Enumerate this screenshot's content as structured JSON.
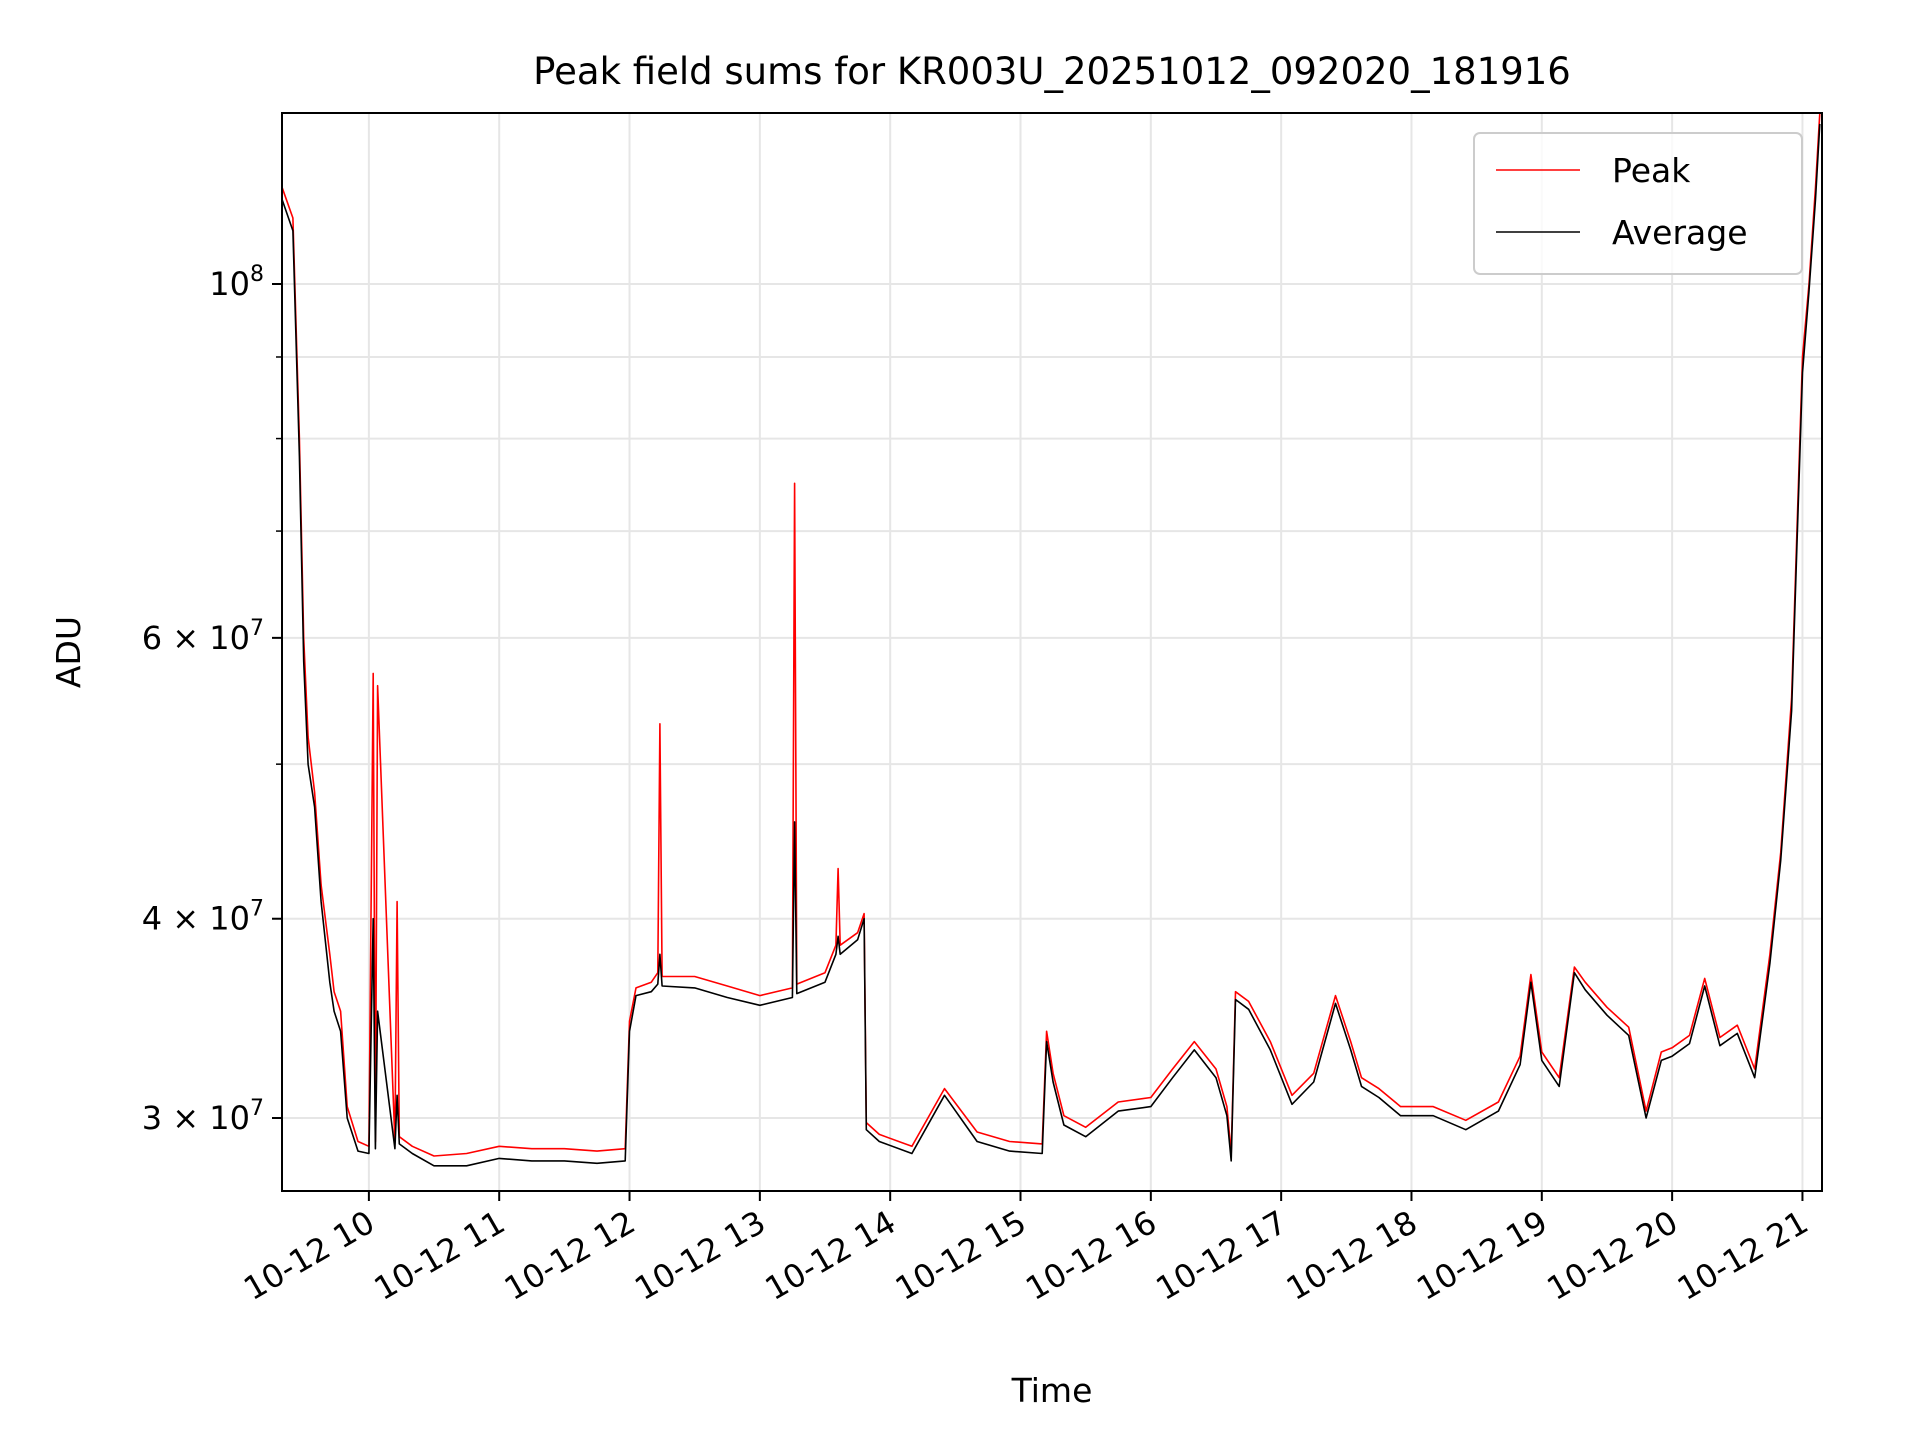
{
  "chart_data": {
    "type": "line",
    "title": "Peak field sums for KR003U_20251012_092020_181916",
    "xlabel": "Time",
    "ylabel": "ADU",
    "yscale": "log",
    "xlim": [
      "2025-10-12 09:20",
      "2025-10-12 21:09"
    ],
    "ylim": [
      27000000,
      128000000
    ],
    "grid": true,
    "legend_position": "top-right",
    "x_ticks": [
      {
        "value": "2025-10-12 10:00",
        "label": "10-12 10"
      },
      {
        "value": "2025-10-12 11:00",
        "label": "10-12 11"
      },
      {
        "value": "2025-10-12 12:00",
        "label": "10-12 12"
      },
      {
        "value": "2025-10-12 13:00",
        "label": "10-12 13"
      },
      {
        "value": "2025-10-12 14:00",
        "label": "10-12 14"
      },
      {
        "value": "2025-10-12 15:00",
        "label": "10-12 15"
      },
      {
        "value": "2025-10-12 16:00",
        "label": "10-12 16"
      },
      {
        "value": "2025-10-12 17:00",
        "label": "10-12 17"
      },
      {
        "value": "2025-10-12 18:00",
        "label": "10-12 18"
      },
      {
        "value": "2025-10-12 19:00",
        "label": "10-12 19"
      },
      {
        "value": "2025-10-12 20:00",
        "label": "10-12 20"
      },
      {
        "value": "2025-10-12 21:00",
        "label": "10-12 21"
      }
    ],
    "y_ticks": [
      {
        "value": 30000000,
        "base": "3 × 10",
        "exp": "7"
      },
      {
        "value": 40000000,
        "base": "4 × 10",
        "exp": "7"
      },
      {
        "value": 60000000,
        "base": "6 × 10",
        "exp": "7"
      },
      {
        "value": 100000000,
        "base": "10",
        "exp": "8"
      }
    ],
    "y_minor_ticks": [
      50000000,
      70000000,
      80000000,
      90000000
    ],
    "series": [
      {
        "name": "Peak",
        "color": "#ff0000",
        "x": [
          "2025-10-12 09:20",
          "2025-10-12 09:25",
          "2025-10-12 09:28",
          "2025-10-12 09:30",
          "2025-10-12 09:32",
          "2025-10-12 09:35",
          "2025-10-12 09:38",
          "2025-10-12 09:42",
          "2025-10-12 09:44",
          "2025-10-12 09:47",
          "2025-10-12 09:50",
          "2025-10-12 09:55",
          "2025-10-12 10:00",
          "2025-10-12 10:02",
          "2025-10-12 10:03",
          "2025-10-12 10:04",
          "2025-10-12 10:12",
          "2025-10-12 10:13",
          "2025-10-12 10:14",
          "2025-10-12 10:20",
          "2025-10-12 10:30",
          "2025-10-12 10:45",
          "2025-10-12 11:00",
          "2025-10-12 11:15",
          "2025-10-12 11:30",
          "2025-10-12 11:45",
          "2025-10-12 11:58",
          "2025-10-12 12:00",
          "2025-10-12 12:03",
          "2025-10-12 12:10",
          "2025-10-12 12:13",
          "2025-10-12 12:14",
          "2025-10-12 12:15",
          "2025-10-12 12:30",
          "2025-10-12 12:45",
          "2025-10-12 13:00",
          "2025-10-12 13:15",
          "2025-10-12 13:16",
          "2025-10-12 13:17",
          "2025-10-12 13:30",
          "2025-10-12 13:35",
          "2025-10-12 13:36",
          "2025-10-12 13:37",
          "2025-10-12 13:45",
          "2025-10-12 13:48",
          "2025-10-12 13:49",
          "2025-10-12 13:55",
          "2025-10-12 14:10",
          "2025-10-12 14:25",
          "2025-10-12 14:40",
          "2025-10-12 14:55",
          "2025-10-12 15:10",
          "2025-10-12 15:12",
          "2025-10-12 15:15",
          "2025-10-12 15:20",
          "2025-10-12 15:30",
          "2025-10-12 15:45",
          "2025-10-12 16:00",
          "2025-10-12 16:10",
          "2025-10-12 16:20",
          "2025-10-12 16:30",
          "2025-10-12 16:35",
          "2025-10-12 16:37",
          "2025-10-12 16:39",
          "2025-10-12 16:45",
          "2025-10-12 16:55",
          "2025-10-12 17:05",
          "2025-10-12 17:15",
          "2025-10-12 17:25",
          "2025-10-12 17:32",
          "2025-10-12 17:37",
          "2025-10-12 17:45",
          "2025-10-12 17:55",
          "2025-10-12 18:10",
          "2025-10-12 18:25",
          "2025-10-12 18:40",
          "2025-10-12 18:50",
          "2025-10-12 18:55",
          "2025-10-12 19:00",
          "2025-10-12 19:08",
          "2025-10-12 19:15",
          "2025-10-12 19:20",
          "2025-10-12 19:30",
          "2025-10-12 19:40",
          "2025-10-12 19:48",
          "2025-10-12 19:55",
          "2025-10-12 20:00",
          "2025-10-12 20:08",
          "2025-10-12 20:15",
          "2025-10-12 20:22",
          "2025-10-12 20:30",
          "2025-10-12 20:38",
          "2025-10-12 20:45",
          "2025-10-12 20:50",
          "2025-10-12 20:55",
          "2025-10-12 21:00",
          "2025-10-12 21:03",
          "2025-10-12 21:06",
          "2025-10-12 21:08"
        ],
        "y": [
          115000000,
          110000000,
          80000000,
          60000000,
          52000000,
          48000000,
          42000000,
          38000000,
          36000000,
          35000000,
          30500000,
          29000000,
          28800000,
          57000000,
          29000000,
          56000000,
          29000000,
          41000000,
          29200000,
          28800000,
          28400000,
          28500000,
          28800000,
          28700000,
          28700000,
          28600000,
          28700000,
          34500000,
          36200000,
          36500000,
          37000000,
          53000000,
          36800000,
          36800000,
          36300000,
          35800000,
          36200000,
          75000000,
          36400000,
          37000000,
          38500000,
          43000000,
          38500000,
          39200000,
          40300000,
          29800000,
          29300000,
          28800000,
          31300000,
          29400000,
          29000000,
          28900000,
          34000000,
          32000000,
          30100000,
          29600000,
          30700000,
          30900000,
          32200000,
          33500000,
          32200000,
          30500000,
          28500000,
          36000000,
          35500000,
          33500000,
          31000000,
          32000000,
          35800000,
          33500000,
          31800000,
          31300000,
          30500000,
          30500000,
          29900000,
          30700000,
          32800000,
          36900000,
          33000000,
          31800000,
          37300000,
          36500000,
          35200000,
          34200000,
          30300000,
          33000000,
          33200000,
          33800000,
          36700000,
          33700000,
          34300000,
          32200000,
          38000000,
          44000000,
          55000000,
          90000000,
          100000000,
          115000000,
          128000000
        ]
      },
      {
        "name": "Average",
        "color": "#000000",
        "x": [
          "2025-10-12 09:20",
          "2025-10-12 09:25",
          "2025-10-12 09:28",
          "2025-10-12 09:30",
          "2025-10-12 09:32",
          "2025-10-12 09:35",
          "2025-10-12 09:38",
          "2025-10-12 09:42",
          "2025-10-12 09:44",
          "2025-10-12 09:47",
          "2025-10-12 09:50",
          "2025-10-12 09:55",
          "2025-10-12 10:00",
          "2025-10-12 10:02",
          "2025-10-12 10:03",
          "2025-10-12 10:04",
          "2025-10-12 10:12",
          "2025-10-12 10:13",
          "2025-10-12 10:14",
          "2025-10-12 10:20",
          "2025-10-12 10:30",
          "2025-10-12 10:45",
          "2025-10-12 11:00",
          "2025-10-12 11:15",
          "2025-10-12 11:30",
          "2025-10-12 11:45",
          "2025-10-12 11:58",
          "2025-10-12 12:00",
          "2025-10-12 12:03",
          "2025-10-12 12:10",
          "2025-10-12 12:13",
          "2025-10-12 12:14",
          "2025-10-12 12:15",
          "2025-10-12 12:30",
          "2025-10-12 12:45",
          "2025-10-12 13:00",
          "2025-10-12 13:15",
          "2025-10-12 13:16",
          "2025-10-12 13:17",
          "2025-10-12 13:30",
          "2025-10-12 13:35",
          "2025-10-12 13:36",
          "2025-10-12 13:37",
          "2025-10-12 13:45",
          "2025-10-12 13:48",
          "2025-10-12 13:49",
          "2025-10-12 13:55",
          "2025-10-12 14:10",
          "2025-10-12 14:25",
          "2025-10-12 14:40",
          "2025-10-12 14:55",
          "2025-10-12 15:10",
          "2025-10-12 15:12",
          "2025-10-12 15:15",
          "2025-10-12 15:20",
          "2025-10-12 15:30",
          "2025-10-12 15:45",
          "2025-10-12 16:00",
          "2025-10-12 16:10",
          "2025-10-12 16:20",
          "2025-10-12 16:30",
          "2025-10-12 16:35",
          "2025-10-12 16:37",
          "2025-10-12 16:39",
          "2025-10-12 16:45",
          "2025-10-12 16:55",
          "2025-10-12 17:05",
          "2025-10-12 17:15",
          "2025-10-12 17:25",
          "2025-10-12 17:32",
          "2025-10-12 17:37",
          "2025-10-12 17:45",
          "2025-10-12 17:55",
          "2025-10-12 18:10",
          "2025-10-12 18:25",
          "2025-10-12 18:40",
          "2025-10-12 18:50",
          "2025-10-12 18:55",
          "2025-10-12 19:00",
          "2025-10-12 19:08",
          "2025-10-12 19:15",
          "2025-10-12 19:20",
          "2025-10-12 19:30",
          "2025-10-12 19:40",
          "2025-10-12 19:48",
          "2025-10-12 19:55",
          "2025-10-12 20:00",
          "2025-10-12 20:08",
          "2025-10-12 20:15",
          "2025-10-12 20:22",
          "2025-10-12 20:30",
          "2025-10-12 20:38",
          "2025-10-12 20:45",
          "2025-10-12 20:50",
          "2025-10-12 20:55",
          "2025-10-12 21:00",
          "2025-10-12 21:03",
          "2025-10-12 21:06",
          "2025-10-12 21:08"
        ],
        "y": [
          113000000,
          108000000,
          78000000,
          58000000,
          50000000,
          47000000,
          41000000,
          36500000,
          35000000,
          34000000,
          30000000,
          28600000,
          28500000,
          40000000,
          28700000,
          35000000,
          28700000,
          31000000,
          28900000,
          28500000,
          28000000,
          28000000,
          28300000,
          28200000,
          28200000,
          28100000,
          28200000,
          34000000,
          35800000,
          36000000,
          36400000,
          38000000,
          36300000,
          36200000,
          35700000,
          35300000,
          35700000,
          46000000,
          35900000,
          36500000,
          38000000,
          39000000,
          38000000,
          38800000,
          40000000,
          29500000,
          29000000,
          28500000,
          31000000,
          29000000,
          28600000,
          28500000,
          33500000,
          31600000,
          29700000,
          29200000,
          30300000,
          30500000,
          31800000,
          33100000,
          31800000,
          30100000,
          28200000,
          35600000,
          35100000,
          33100000,
          30600000,
          31600000,
          35400000,
          33100000,
          31400000,
          30900000,
          30100000,
          30100000,
          29500000,
          30300000,
          32400000,
          36500000,
          32600000,
          31400000,
          37000000,
          36100000,
          34800000,
          33800000,
          30000000,
          32600000,
          32800000,
          33400000,
          36300000,
          33300000,
          33900000,
          31800000,
          37500000,
          43500000,
          54000000,
          88000000,
          99000000,
          113000000,
          126000000
        ]
      }
    ]
  }
}
